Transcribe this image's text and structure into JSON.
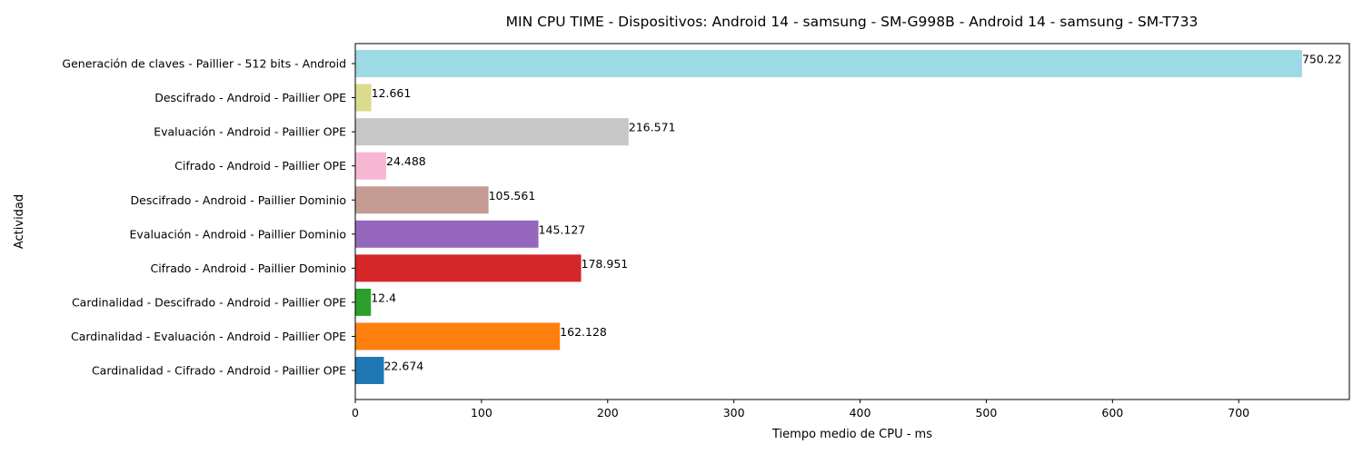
{
  "chart_data": {
    "type": "bar",
    "orientation": "horizontal",
    "title": "MIN CPU TIME - Dispositivos: Android 14 - samsung - SM-G998B - Android 14 - samsung - SM-T733",
    "xlabel": "Tiempo medio de CPU - ms",
    "ylabel": "Actividad",
    "xlim": [
      0,
      787.7
    ],
    "xticks": [
      0,
      100,
      200,
      300,
      400,
      500,
      600,
      700
    ],
    "grid": false,
    "categories": [
      "Cardinalidad - Cifrado - Android - Paillier OPE",
      "Cardinalidad - Evaluación - Android - Paillier OPE",
      "Cardinalidad - Descifrado - Android - Paillier OPE",
      "Cifrado - Android - Paillier Dominio",
      "Evaluación - Android - Paillier Dominio",
      "Descifrado - Android - Paillier Dominio",
      "Cifrado - Android - Paillier OPE",
      "Evaluación - Android - Paillier OPE",
      "Descifrado - Android - Paillier OPE",
      "Generación de claves - Paillier - 512 bits - Android"
    ],
    "values": [
      22.674,
      162.128,
      12.4,
      178.951,
      145.127,
      105.561,
      24.488,
      216.571,
      12.661,
      750.22
    ],
    "value_labels": [
      "22.674",
      "162.128",
      "12.4",
      "178.951",
      "145.127",
      "105.561",
      "24.488",
      "216.571",
      "12.661",
      "750.22"
    ],
    "colors": [
      "#1f77b4",
      "#ff7f0e",
      "#2ca02c",
      "#d62728",
      "#9467bd",
      "#c49c94",
      "#f7b6d2",
      "#c7c7c7",
      "#dbdb8d",
      "#9edae5"
    ]
  }
}
